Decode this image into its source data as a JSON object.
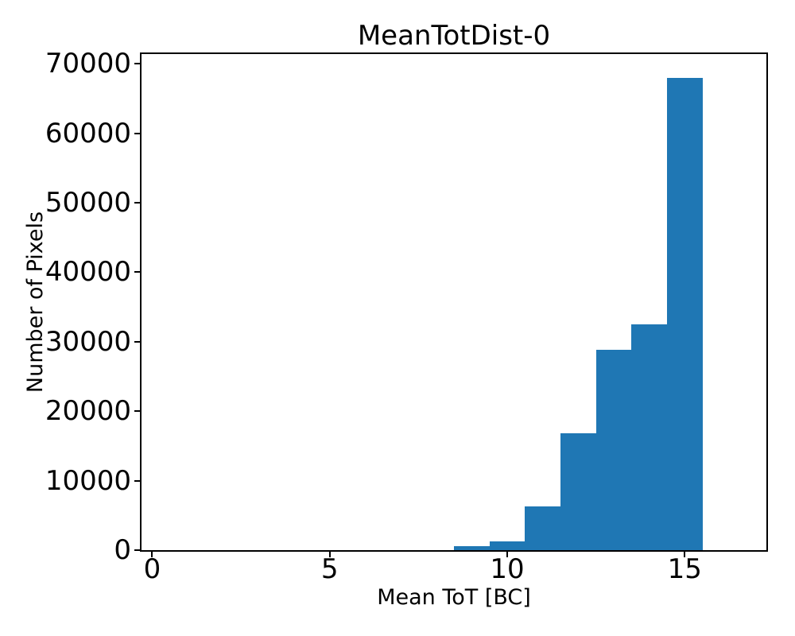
{
  "chart_data": {
    "type": "bar",
    "subtype": "histogram",
    "title": "MeanTotDist-0",
    "xlabel": "Mean ToT [BC]",
    "ylabel": "Number of Pixels",
    "bin_edges": [
      8.5,
      9.5,
      10.5,
      11.5,
      12.5,
      13.5,
      14.5,
      15.5
    ],
    "values": [
      600,
      1250,
      6300,
      16800,
      28800,
      32500,
      68000
    ],
    "xlim": [
      -0.3,
      17.3
    ],
    "ylim": [
      0,
      71400
    ],
    "x_ticks": [
      0,
      5,
      10,
      15
    ],
    "x_tick_labels": [
      "0",
      "5",
      "10",
      "15"
    ],
    "y_ticks": [
      0,
      10000,
      20000,
      30000,
      40000,
      50000,
      60000,
      70000
    ],
    "y_tick_labels": [
      "0",
      "10000",
      "20000",
      "30000",
      "40000",
      "50000",
      "60000",
      "70000"
    ],
    "bar_color": "#1f77b4",
    "axis_color": "#000000",
    "background_color": "#ffffff",
    "grid": false,
    "legend_position": "none"
  }
}
